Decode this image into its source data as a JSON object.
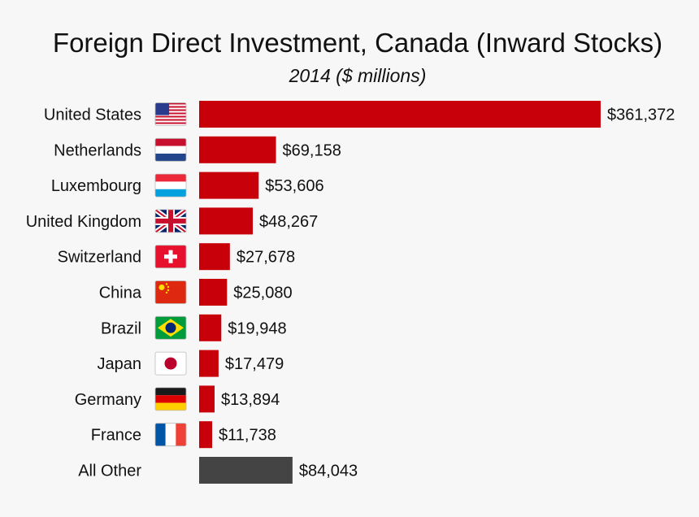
{
  "title": "Foreign Direct Investment, Canada (Inward Stocks)",
  "subtitle": "2014 ($ millions)",
  "colors": {
    "bar": "#c8000a",
    "other": "#444444"
  },
  "chart_data": {
    "type": "bar",
    "orientation": "horizontal",
    "title": "Foreign Direct Investment, Canada (Inward Stocks)",
    "subtitle": "2014 ($ millions)",
    "categories": [
      "United States",
      "Netherlands",
      "Luxembourg",
      "United Kingdom",
      "Switzerland",
      "China",
      "Brazil",
      "Japan",
      "Germany",
      "France",
      "All Other"
    ],
    "values": [
      361372,
      69158,
      53606,
      48267,
      27678,
      25080,
      19948,
      17479,
      13894,
      11738,
      84043
    ],
    "value_labels": [
      "$361,372",
      "$69,158",
      "$53,606",
      "$48,267",
      "$27,678",
      "$25,080",
      "$19,948",
      "$17,479",
      "$13,894",
      "$11,738",
      "$84,043"
    ],
    "flags": [
      "us-flag-icon",
      "netherlands-flag-icon",
      "luxembourg-flag-icon",
      "uk-flag-icon",
      "switzerland-flag-icon",
      "china-flag-icon",
      "brazil-flag-icon",
      "japan-flag-icon",
      "germany-flag-icon",
      "france-flag-icon",
      ""
    ],
    "xlabel": "",
    "ylabel": "",
    "xlim": [
      0,
      361372
    ],
    "grid": false,
    "legend": "none"
  }
}
